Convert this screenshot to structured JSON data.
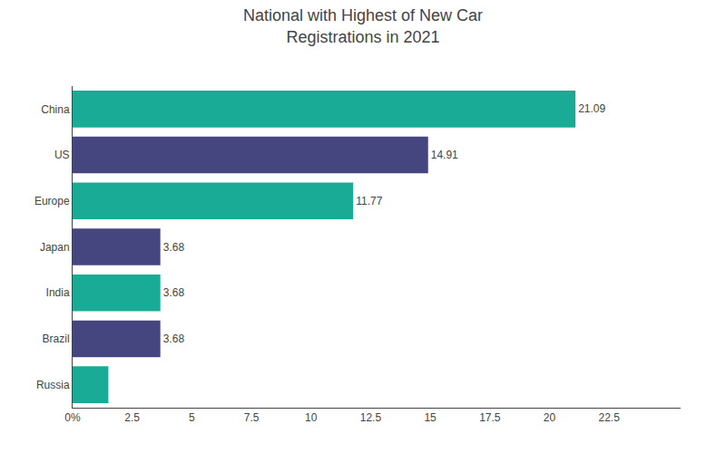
{
  "chart_data": {
    "type": "bar",
    "orientation": "horizontal",
    "title": "National with Highest of New Car\nRegistrations in 2021",
    "categories": [
      "China",
      "US",
      "Europe",
      "Japan",
      "India",
      "Brazil",
      "Russia"
    ],
    "values": [
      21.09,
      14.91,
      11.77,
      3.68,
      3.68,
      3.68,
      1.5
    ],
    "value_labels": [
      "21.09",
      "14.91",
      "11.77",
      "3.68",
      "3.68",
      "3.68",
      null
    ],
    "data_labels": true,
    "colors": [
      "#1aab96",
      "#454580",
      "#1aab96",
      "#454580",
      "#1aab96",
      "#454580",
      "#1aab96"
    ],
    "xlim": [
      0,
      25.5
    ],
    "xticks": [
      {
        "value": 0,
        "label": "0%"
      },
      2.5,
      5,
      7.5,
      10,
      12.5,
      15,
      17.5,
      20,
      22.5
    ],
    "grid": false
  }
}
